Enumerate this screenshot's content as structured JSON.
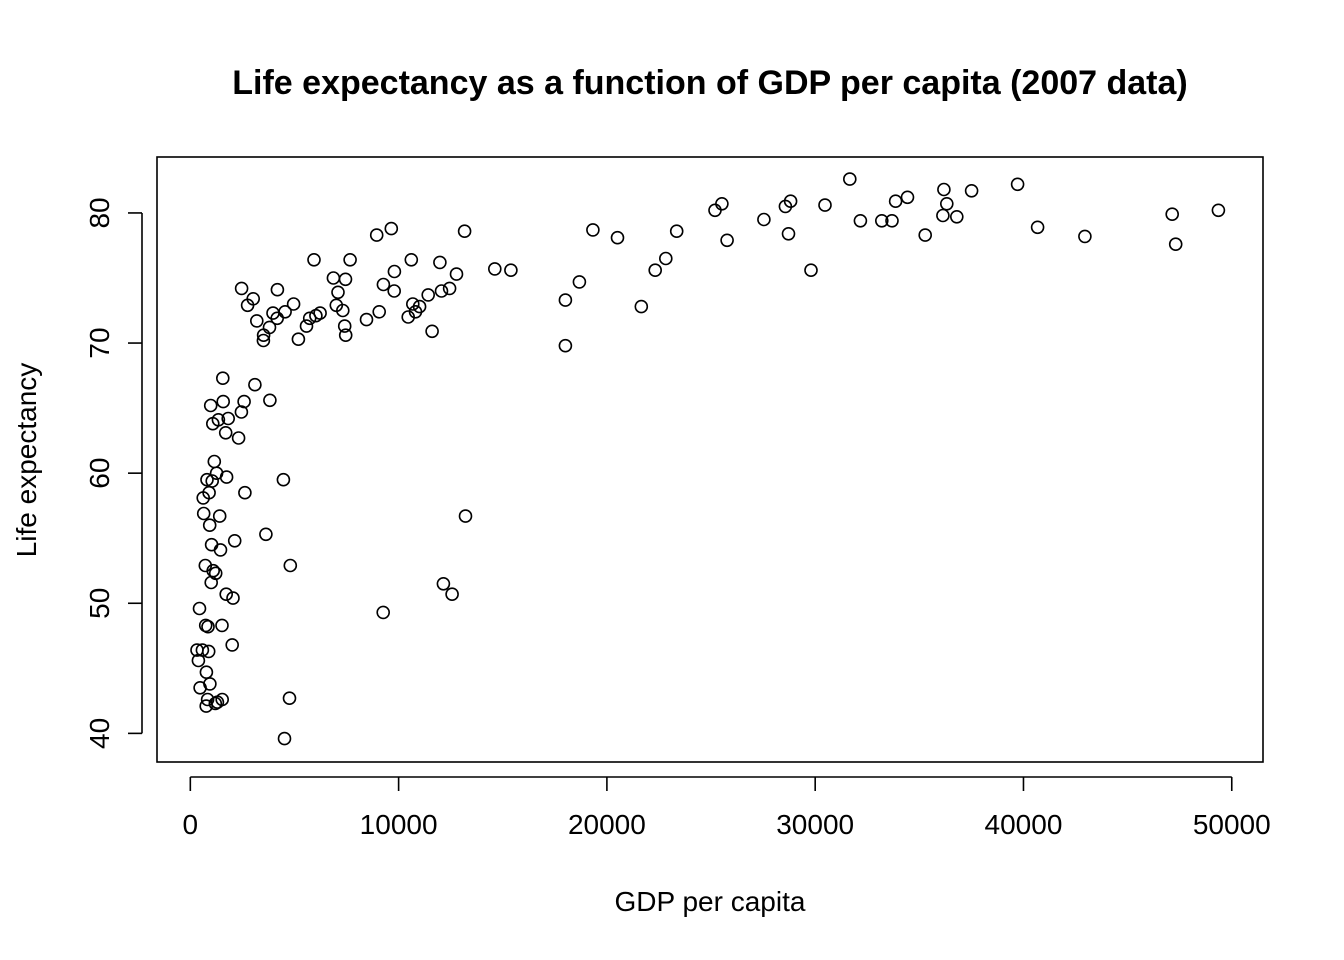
{
  "chart_data": {
    "type": "scatter",
    "title": "Life expectancy as a function of GDP per capita (2007 data)",
    "xlabel": "GDP per capita",
    "ylabel": "Life expectancy",
    "xlim": [
      -1600,
      51500
    ],
    "ylim": [
      37.8,
      84.3
    ],
    "x_ticks": [
      0,
      10000,
      20000,
      30000,
      40000,
      50000
    ],
    "x_tick_labels": [
      "0",
      "10000",
      "20000",
      "30000",
      "40000",
      "50000"
    ],
    "y_ticks": [
      40,
      50,
      60,
      70,
      80
    ],
    "y_tick_labels": [
      "40",
      "50",
      "60",
      "70",
      "80"
    ],
    "grid": false,
    "legend": "none",
    "colors": {
      "points": "#000000",
      "frame": "#000000"
    },
    "points": [
      [
        319,
        46.4
      ],
      [
        390,
        45.6
      ],
      [
        470,
        43.5
      ],
      [
        440,
        49.6
      ],
      [
        580,
        46.4
      ],
      [
        620,
        58.1
      ],
      [
        640,
        56.9
      ],
      [
        720,
        52.9
      ],
      [
        740,
        48.3
      ],
      [
        760,
        42.1
      ],
      [
        770,
        44.7
      ],
      [
        800,
        59.5
      ],
      [
        830,
        42.6
      ],
      [
        850,
        48.2
      ],
      [
        880,
        46.3
      ],
      [
        900,
        58.5
      ],
      [
        930,
        56.0
      ],
      [
        940,
        43.8
      ],
      [
        980,
        65.2
      ],
      [
        1000,
        51.6
      ],
      [
        1020,
        54.5
      ],
      [
        1050,
        59.4
      ],
      [
        1080,
        63.8
      ],
      [
        1100,
        52.5
      ],
      [
        1150,
        60.9
      ],
      [
        1200,
        42.3
      ],
      [
        1220,
        52.3
      ],
      [
        1260,
        60.0
      ],
      [
        1300,
        42.4
      ],
      [
        1350,
        64.1
      ],
      [
        1410,
        56.7
      ],
      [
        1450,
        54.1
      ],
      [
        1520,
        48.3
      ],
      [
        1530,
        42.6
      ],
      [
        1560,
        67.3
      ],
      [
        1580,
        65.5
      ],
      [
        1700,
        63.1
      ],
      [
        1720,
        50.7
      ],
      [
        1740,
        59.7
      ],
      [
        1820,
        64.2
      ],
      [
        2010,
        46.8
      ],
      [
        2050,
        50.4
      ],
      [
        2130,
        54.8
      ],
      [
        2320,
        62.7
      ],
      [
        2450,
        64.7
      ],
      [
        2460,
        74.2
      ],
      [
        2580,
        65.5
      ],
      [
        2620,
        58.5
      ],
      [
        2750,
        72.9
      ],
      [
        3020,
        73.4
      ],
      [
        3100,
        66.8
      ],
      [
        3190,
        71.7
      ],
      [
        3510,
        70.2
      ],
      [
        3520,
        70.6
      ],
      [
        3630,
        55.3
      ],
      [
        3800,
        71.2
      ],
      [
        3820,
        65.6
      ],
      [
        3970,
        72.3
      ],
      [
        4170,
        71.9
      ],
      [
        4180,
        74.1
      ],
      [
        4470,
        59.5
      ],
      [
        4520,
        39.6
      ],
      [
        4550,
        72.4
      ],
      [
        4760,
        42.7
      ],
      [
        4800,
        52.9
      ],
      [
        4960,
        73.0
      ],
      [
        5190,
        70.3
      ],
      [
        5580,
        71.3
      ],
      [
        5730,
        71.9
      ],
      [
        5940,
        76.4
      ],
      [
        6030,
        72.1
      ],
      [
        6230,
        72.3
      ],
      [
        6870,
        75.0
      ],
      [
        7010,
        72.9
      ],
      [
        7090,
        73.9
      ],
      [
        7320,
        72.5
      ],
      [
        7410,
        71.3
      ],
      [
        7450,
        74.9
      ],
      [
        7460,
        70.6
      ],
      [
        7670,
        76.4
      ],
      [
        8460,
        71.8
      ],
      [
        8950,
        78.3
      ],
      [
        9070,
        72.4
      ],
      [
        9260,
        49.3
      ],
      [
        9270,
        74.5
      ],
      [
        9650,
        78.8
      ],
      [
        9790,
        74.0
      ],
      [
        9800,
        75.5
      ],
      [
        10460,
        72.0
      ],
      [
        10610,
        76.4
      ],
      [
        10680,
        73.0
      ],
      [
        10810,
        72.4
      ],
      [
        11010,
        72.8
      ],
      [
        11420,
        73.7
      ],
      [
        11610,
        70.9
      ],
      [
        11980,
        76.2
      ],
      [
        12060,
        74.0
      ],
      [
        12150,
        51.5
      ],
      [
        12450,
        74.2
      ],
      [
        12570,
        50.7
      ],
      [
        12780,
        75.3
      ],
      [
        13170,
        78.6
      ],
      [
        13210,
        56.7
      ],
      [
        14620,
        75.7
      ],
      [
        15390,
        75.6
      ],
      [
        18010,
        73.3
      ],
      [
        18010,
        69.8
      ],
      [
        18680,
        74.7
      ],
      [
        19330,
        78.7
      ],
      [
        20510,
        78.1
      ],
      [
        21650,
        72.8
      ],
      [
        22320,
        75.6
      ],
      [
        22830,
        76.5
      ],
      [
        23350,
        78.6
      ],
      [
        25190,
        80.2
      ],
      [
        25520,
        80.7
      ],
      [
        25770,
        77.9
      ],
      [
        27540,
        79.5
      ],
      [
        28570,
        80.5
      ],
      [
        28720,
        78.4
      ],
      [
        28820,
        80.9
      ],
      [
        29800,
        75.6
      ],
      [
        30470,
        80.6
      ],
      [
        31660,
        82.6
      ],
      [
        32170,
        79.4
      ],
      [
        33200,
        79.4
      ],
      [
        33690,
        79.4
      ],
      [
        33860,
        80.9
      ],
      [
        34430,
        81.2
      ],
      [
        35280,
        78.3
      ],
      [
        36130,
        79.8
      ],
      [
        36180,
        81.8
      ],
      [
        36320,
        80.7
      ],
      [
        36800,
        79.7
      ],
      [
        37510,
        81.7
      ],
      [
        39720,
        82.2
      ],
      [
        40680,
        78.9
      ],
      [
        42950,
        78.2
      ],
      [
        47140,
        79.9
      ],
      [
        47310,
        77.6
      ],
      [
        49360,
        80.2
      ]
    ]
  }
}
